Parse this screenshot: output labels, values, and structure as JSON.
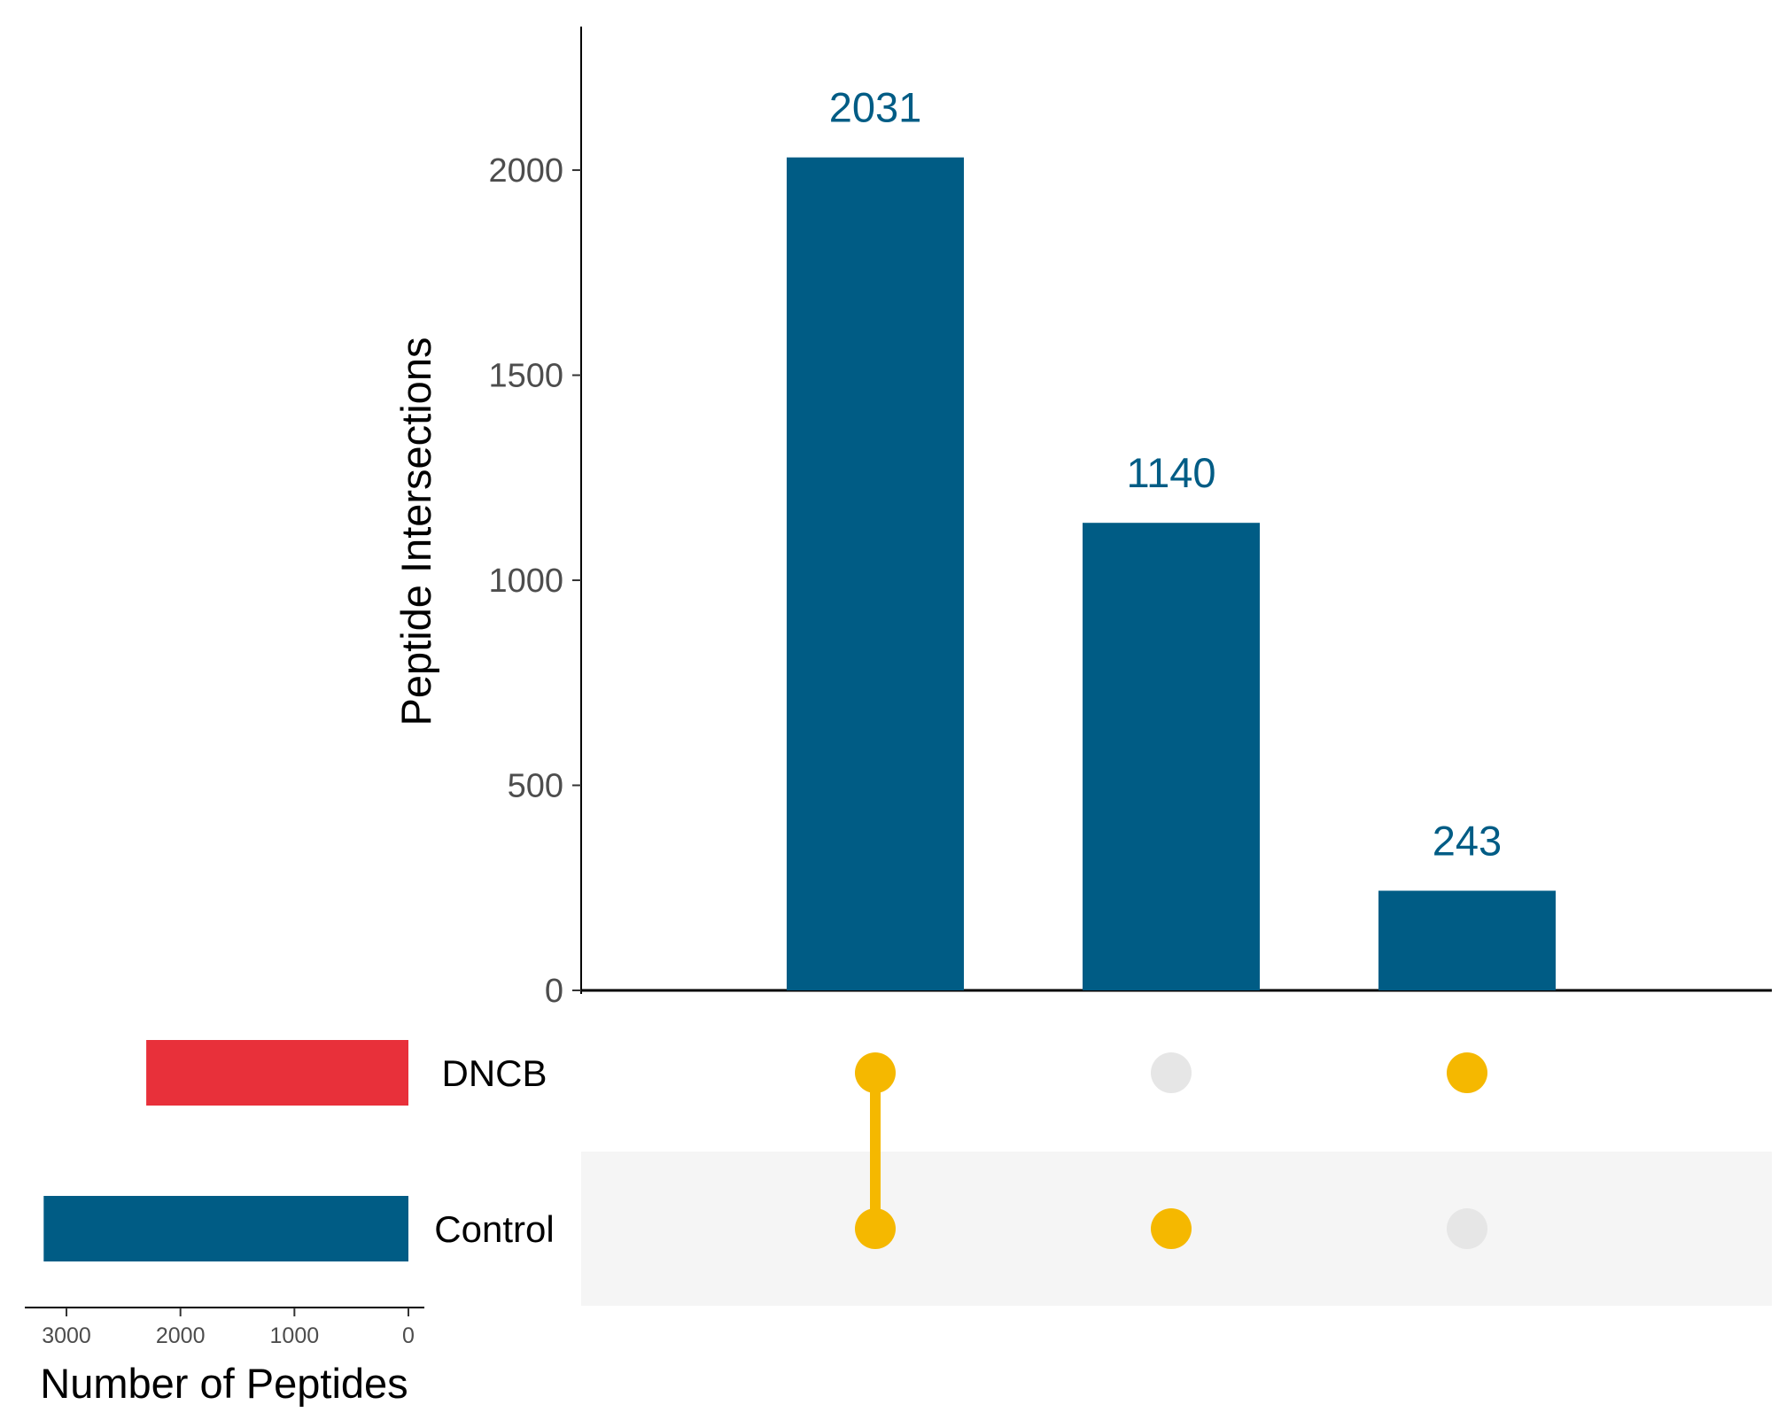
{
  "chart_data": {
    "type": "upset",
    "intersections": {
      "type": "bar",
      "ylabel": "Peptide Intersections",
      "ylim": [
        0,
        2350
      ],
      "yticks": [
        0,
        500,
        1000,
        1500,
        2000
      ],
      "values": [
        2031,
        1140,
        243
      ],
      "data_labels": [
        "2031",
        "1140",
        "243"
      ],
      "bar_color": "#005C85",
      "label_color": "#005C85"
    },
    "matrix": {
      "sets": [
        "DNCB",
        "Control"
      ],
      "membership": [
        [
          true,
          true
        ],
        [
          false,
          true
        ],
        [
          true,
          false
        ]
      ],
      "active_dot_color": "#F5B800",
      "inactive_dot_color": "#E6E6E6",
      "stripe_color": "#F5F5F5"
    },
    "set_sizes": {
      "type": "bar",
      "xlabel": "Number of Peptides",
      "xlim": [
        0,
        3350
      ],
      "xticks": [
        3000,
        2000,
        1000,
        0
      ],
      "sets": [
        "DNCB",
        "Control"
      ],
      "values": [
        2300,
        3200
      ],
      "colors": [
        "#E8303A",
        "#005C85"
      ]
    }
  }
}
